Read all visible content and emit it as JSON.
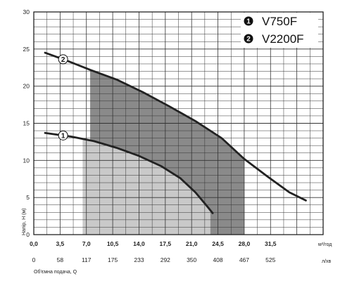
{
  "chart_data": {
    "type": "line",
    "ylabel": "Напір, Н (м)",
    "xlabel": "Об'ємна подача, Q",
    "x_unit_top": "м³/год",
    "x_unit_bottom": "л/хв",
    "xlim": [
      0,
      38.5
    ],
    "ylim": [
      0,
      30
    ],
    "x_ticks": [
      "0,0",
      "3,5",
      "7,0",
      "10,5",
      "14,0",
      "17,5",
      "21,0",
      "24,5",
      "28,0",
      "31,5"
    ],
    "x2_ticks": [
      "0",
      "58",
      "117",
      "175",
      "233",
      "292",
      "350",
      "408",
      "467",
      "525"
    ],
    "y_ticks": [
      "0",
      "5",
      "10",
      "15",
      "20",
      "25",
      "30"
    ],
    "grid": true,
    "legend_position": "top-right",
    "series": [
      {
        "name": "V750F",
        "marker": "1",
        "color": "#222222",
        "points": [
          [
            1.5,
            13.7
          ],
          [
            5,
            13.2
          ],
          [
            8,
            12.6
          ],
          [
            11,
            11.7
          ],
          [
            14,
            10.6
          ],
          [
            17,
            9.2
          ],
          [
            19.5,
            7.6
          ],
          [
            21.5,
            5.7
          ],
          [
            23,
            3.9
          ],
          [
            23.8,
            2.9
          ]
        ],
        "operating_range": [
          6.5,
          23.5
        ]
      },
      {
        "name": "V2200F",
        "marker": "2",
        "color": "#222222",
        "points": [
          [
            1.5,
            24.5
          ],
          [
            4.5,
            23.4
          ],
          [
            7.5,
            22.2
          ],
          [
            11,
            20.9
          ],
          [
            14.5,
            19.2
          ],
          [
            18,
            17.3
          ],
          [
            21.5,
            15.3
          ],
          [
            25,
            13.0
          ],
          [
            28,
            10.2
          ],
          [
            31,
            7.9
          ],
          [
            34,
            5.7
          ],
          [
            36.2,
            4.6
          ]
        ],
        "operating_range": [
          7.5,
          28
        ]
      }
    ],
    "legend": [
      {
        "num": "1",
        "label": "V750F"
      },
      {
        "num": "2",
        "label": "V2200F"
      }
    ],
    "colors": {
      "grid": "#333333",
      "shade_light": "#c9c9c9",
      "shade_dark": "#8a8a8a",
      "curve": "#222222"
    }
  }
}
